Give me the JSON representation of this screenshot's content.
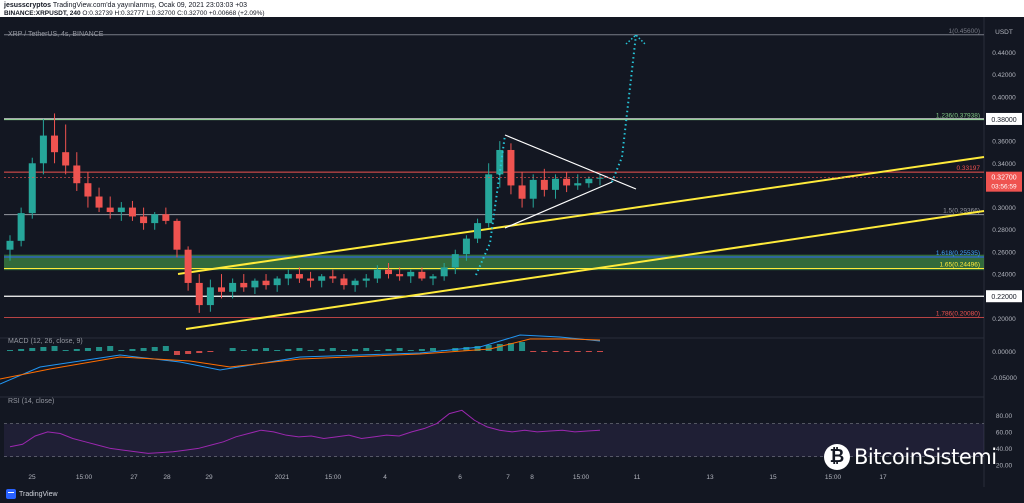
{
  "header": {
    "author": "jesusscryptos",
    "published": "TradingView.com'da yayınlanmış, Ocak 09, 2021 23:03:03 +03",
    "symbol_line": "BINANCE:XRPUSDT, 240",
    "ohlc": "O:0.32739 H:0.32777 L:0.32700 C:0.32700",
    "change": "+0.00668 (+2.09%)"
  },
  "colors": {
    "background": "#131722",
    "up": "#26a69a",
    "down": "#ef5350",
    "yellow": "#ffeb3b",
    "green_zone": "#4caf50",
    "white": "#ffffff",
    "cyan_dotted": "#26c6da",
    "macd_line": "#2196f3",
    "signal_line": "#ff6d00",
    "rsi_line": "#9c27b0"
  },
  "chart_data": {
    "type": "candlestick",
    "title": "XRP / TetherUS, 4s, BINANCE",
    "x_ticks": [
      "25",
      "15:00",
      "27",
      "28",
      "29",
      "2021",
      "15:00",
      "4",
      "6",
      "7",
      "8",
      "15:00",
      "11",
      "13",
      "15",
      "15:00",
      "17"
    ],
    "y_ticks": [
      "0.44000",
      "0.42000",
      "0.40000",
      "0.36000",
      "0.34000",
      "0.30000",
      "0.28000",
      "0.26000",
      "0.24000",
      "0.20000"
    ],
    "ylim": [
      0.185,
      0.463
    ],
    "last_price": "0.32700",
    "countdown": "03:56:59",
    "currency": "USDT",
    "candles": [
      {
        "o": 0.262,
        "h": 0.275,
        "l": 0.252,
        "c": 0.27
      },
      {
        "o": 0.27,
        "h": 0.3,
        "l": 0.265,
        "c": 0.295
      },
      {
        "o": 0.295,
        "h": 0.345,
        "l": 0.29,
        "c": 0.34
      },
      {
        "o": 0.34,
        "h": 0.38,
        "l": 0.33,
        "c": 0.365
      },
      {
        "o": 0.365,
        "h": 0.385,
        "l": 0.34,
        "c": 0.35
      },
      {
        "o": 0.35,
        "h": 0.375,
        "l": 0.33,
        "c": 0.338
      },
      {
        "o": 0.338,
        "h": 0.35,
        "l": 0.315,
        "c": 0.322
      },
      {
        "o": 0.322,
        "h": 0.332,
        "l": 0.3,
        "c": 0.31
      },
      {
        "o": 0.31,
        "h": 0.318,
        "l": 0.296,
        "c": 0.3
      },
      {
        "o": 0.3,
        "h": 0.31,
        "l": 0.29,
        "c": 0.296
      },
      {
        "o": 0.296,
        "h": 0.305,
        "l": 0.288,
        "c": 0.3
      },
      {
        "o": 0.3,
        "h": 0.306,
        "l": 0.288,
        "c": 0.292
      },
      {
        "o": 0.292,
        "h": 0.3,
        "l": 0.28,
        "c": 0.286
      },
      {
        "o": 0.286,
        "h": 0.296,
        "l": 0.28,
        "c": 0.294
      },
      {
        "o": 0.294,
        "h": 0.3,
        "l": 0.285,
        "c": 0.288
      },
      {
        "o": 0.288,
        "h": 0.29,
        "l": 0.255,
        "c": 0.262
      },
      {
        "o": 0.262,
        "h": 0.265,
        "l": 0.225,
        "c": 0.232
      },
      {
        "o": 0.232,
        "h": 0.24,
        "l": 0.205,
        "c": 0.212
      },
      {
        "o": 0.212,
        "h": 0.235,
        "l": 0.206,
        "c": 0.228
      },
      {
        "o": 0.228,
        "h": 0.24,
        "l": 0.218,
        "c": 0.224
      },
      {
        "o": 0.224,
        "h": 0.236,
        "l": 0.218,
        "c": 0.232
      },
      {
        "o": 0.232,
        "h": 0.24,
        "l": 0.224,
        "c": 0.228
      },
      {
        "o": 0.228,
        "h": 0.236,
        "l": 0.222,
        "c": 0.234
      },
      {
        "o": 0.234,
        "h": 0.24,
        "l": 0.226,
        "c": 0.23
      },
      {
        "o": 0.23,
        "h": 0.238,
        "l": 0.224,
        "c": 0.236
      },
      {
        "o": 0.236,
        "h": 0.244,
        "l": 0.23,
        "c": 0.24
      },
      {
        "o": 0.24,
        "h": 0.246,
        "l": 0.232,
        "c": 0.236
      },
      {
        "o": 0.236,
        "h": 0.242,
        "l": 0.228,
        "c": 0.234
      },
      {
        "o": 0.234,
        "h": 0.24,
        "l": 0.228,
        "c": 0.238
      },
      {
        "o": 0.238,
        "h": 0.244,
        "l": 0.232,
        "c": 0.236
      },
      {
        "o": 0.236,
        "h": 0.24,
        "l": 0.226,
        "c": 0.23
      },
      {
        "o": 0.23,
        "h": 0.236,
        "l": 0.224,
        "c": 0.234
      },
      {
        "o": 0.234,
        "h": 0.24,
        "l": 0.228,
        "c": 0.236
      },
      {
        "o": 0.236,
        "h": 0.248,
        "l": 0.232,
        "c": 0.244
      },
      {
        "o": 0.244,
        "h": 0.25,
        "l": 0.236,
        "c": 0.24
      },
      {
        "o": 0.24,
        "h": 0.246,
        "l": 0.234,
        "c": 0.238
      },
      {
        "o": 0.238,
        "h": 0.244,
        "l": 0.232,
        "c": 0.242
      },
      {
        "o": 0.242,
        "h": 0.246,
        "l": 0.234,
        "c": 0.236
      },
      {
        "o": 0.236,
        "h": 0.24,
        "l": 0.23,
        "c": 0.238
      },
      {
        "o": 0.238,
        "h": 0.25,
        "l": 0.234,
        "c": 0.246
      },
      {
        "o": 0.246,
        "h": 0.262,
        "l": 0.24,
        "c": 0.258
      },
      {
        "o": 0.258,
        "h": 0.275,
        "l": 0.252,
        "c": 0.272
      },
      {
        "o": 0.272,
        "h": 0.29,
        "l": 0.268,
        "c": 0.286
      },
      {
        "o": 0.286,
        "h": 0.34,
        "l": 0.282,
        "c": 0.33
      },
      {
        "o": 0.33,
        "h": 0.36,
        "l": 0.318,
        "c": 0.352
      },
      {
        "o": 0.352,
        "h": 0.358,
        "l": 0.312,
        "c": 0.32
      },
      {
        "o": 0.32,
        "h": 0.332,
        "l": 0.3,
        "c": 0.308
      },
      {
        "o": 0.308,
        "h": 0.33,
        "l": 0.3,
        "c": 0.325
      },
      {
        "o": 0.325,
        "h": 0.335,
        "l": 0.31,
        "c": 0.316
      },
      {
        "o": 0.316,
        "h": 0.33,
        "l": 0.308,
        "c": 0.326
      },
      {
        "o": 0.326,
        "h": 0.332,
        "l": 0.314,
        "c": 0.32
      },
      {
        "o": 0.32,
        "h": 0.33,
        "l": 0.316,
        "c": 0.322
      },
      {
        "o": 0.322,
        "h": 0.328,
        "l": 0.318,
        "c": 0.326
      },
      {
        "o": 0.326,
        "h": 0.33,
        "l": 0.32,
        "c": 0.327
      }
    ],
    "levels": [
      {
        "label": "1(0.45600)",
        "value": 0.456
      },
      {
        "label": "0.38000",
        "value": 0.38
      },
      {
        "label": "1.236(0.37938)",
        "value": 0.3794
      },
      {
        "label": "0.33197",
        "value": 0.332
      },
      {
        "label": "1.5(0.29366)",
        "value": 0.2937
      },
      {
        "label": "1.618(0.25535)",
        "value": 0.2554
      },
      {
        "label": "1.65(0.24496)",
        "value": 0.245
      },
      {
        "label": "0.22000",
        "value": 0.22
      },
      {
        "label": "1.786(0.20080)",
        "value": 0.2008
      }
    ],
    "macd": {
      "label": "MACD (12, 26, close, 9)",
      "y_ticks": [
        "0.00000",
        "-0.05000"
      ]
    },
    "rsi": {
      "label": "RSI (14, close)",
      "y_ticks": [
        "80.00",
        "60.00",
        "40.00",
        "20.00"
      ],
      "values": [
        42,
        45,
        55,
        60,
        58,
        52,
        48,
        44,
        40,
        38,
        36,
        34,
        35,
        36,
        38,
        40,
        44,
        48,
        54,
        58,
        62,
        60,
        56,
        54,
        55,
        52,
        54,
        56,
        52,
        54,
        56,
        55,
        60,
        64,
        70,
        82,
        86,
        74,
        66,
        62,
        60,
        62,
        60,
        61,
        62,
        60,
        61,
        62
      ]
    }
  },
  "watermark": "BitcoinSistemi",
  "footer": {
    "brand": "TradingView"
  }
}
